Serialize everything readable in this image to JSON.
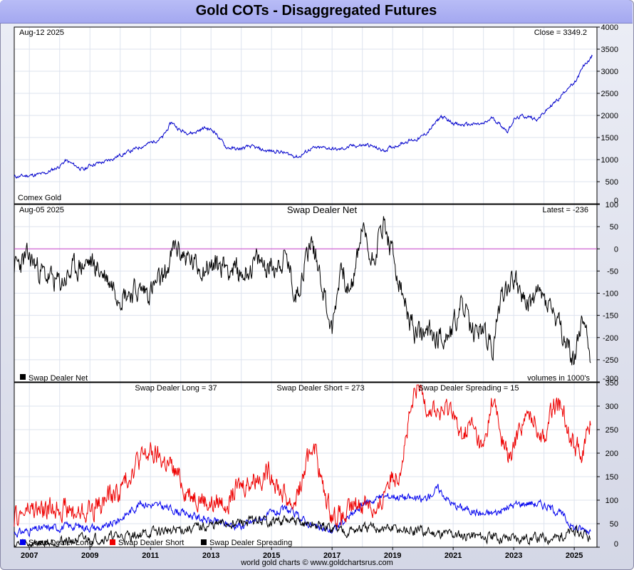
{
  "title": "Gold COTs - Disaggregated Futures",
  "credit": "world gold charts © www.goldchartsrus.com",
  "colors": {
    "price": "#0000cc",
    "net": "#000000",
    "zero": "#cc44cc",
    "long": "#0000ee",
    "short": "#ee0000",
    "spreading": "#000000",
    "grid": "#dde3ee"
  },
  "chart_data": [
    {
      "type": "line",
      "panel": "price",
      "date_label": "Aug-12  2025",
      "latest_label": "Close = 3349.2",
      "source_label": "Comex Gold",
      "ylim": [
        0,
        4000
      ],
      "yticks": [
        0,
        500,
        1000,
        1500,
        2000,
        2500,
        3000,
        3500,
        4000
      ],
      "series": [
        {
          "name": "Comex Gold",
          "x": [
            2006.5,
            2007.0,
            2007.5,
            2008.0,
            2008.2,
            2008.8,
            2009.0,
            2009.5,
            2010.0,
            2010.5,
            2011.0,
            2011.4,
            2011.7,
            2012.0,
            2012.4,
            2012.8,
            2013.1,
            2013.5,
            2013.9,
            2014.3,
            2014.8,
            2015.2,
            2015.9,
            2016.3,
            2016.8,
            2017.2,
            2017.7,
            2018.2,
            2018.7,
            2019.0,
            2019.5,
            2019.9,
            2020.2,
            2020.6,
            2020.8,
            2021.2,
            2021.6,
            2022.0,
            2022.3,
            2022.8,
            2023.0,
            2023.3,
            2023.8,
            2024.2,
            2024.5,
            2024.8,
            2025.0,
            2025.3,
            2025.6
          ],
          "y": [
            610,
            640,
            680,
            850,
            980,
            760,
            880,
            950,
            1100,
            1240,
            1380,
            1500,
            1850,
            1650,
            1600,
            1720,
            1650,
            1280,
            1230,
            1300,
            1200,
            1190,
            1060,
            1250,
            1270,
            1220,
            1310,
            1330,
            1200,
            1290,
            1420,
            1480,
            1650,
            1980,
            1900,
            1780,
            1800,
            1800,
            1950,
            1640,
            1900,
            1990,
            1920,
            2200,
            2380,
            2650,
            2700,
            3100,
            3350
          ]
        }
      ]
    },
    {
      "type": "line",
      "panel": "net",
      "date_label": "Aug-05  2025",
      "title": "Swap Dealer Net",
      "latest_label": "Latest = -236",
      "footer_label": "volumes in 1000's",
      "ylim": [
        -300,
        100
      ],
      "yticks": [
        -300,
        -250,
        -200,
        -150,
        -100,
        -50,
        0,
        50,
        100
      ],
      "series": [
        {
          "name": "Swap Dealer Net",
          "x": [
            2006.5,
            2007.0,
            2007.5,
            2008.0,
            2008.5,
            2009.0,
            2009.5,
            2010.0,
            2010.5,
            2011.0,
            2011.5,
            2011.8,
            2012.2,
            2012.5,
            2013.0,
            2013.5,
            2014.0,
            2014.5,
            2015.0,
            2015.5,
            2015.8,
            2016.3,
            2016.6,
            2017.0,
            2017.3,
            2017.6,
            2018.0,
            2018.3,
            2018.7,
            2019.0,
            2019.3,
            2019.5,
            2019.8,
            2020.2,
            2020.6,
            2021.0,
            2021.3,
            2021.6,
            2022.0,
            2022.3,
            2022.6,
            2023.0,
            2023.4,
            2023.8,
            2024.2,
            2024.6,
            2025.0,
            2025.3,
            2025.55
          ],
          "y": [
            -40,
            -20,
            -60,
            -80,
            -45,
            -30,
            -60,
            -100,
            -95,
            -95,
            -60,
            5,
            -20,
            -40,
            -40,
            -35,
            -60,
            -30,
            -40,
            -20,
            -110,
            20,
            -50,
            -190,
            -30,
            -110,
            50,
            -30,
            60,
            -20,
            -100,
            -150,
            -200,
            -190,
            -200,
            -180,
            -120,
            -190,
            -180,
            -230,
            -100,
            -60,
            -130,
            -100,
            -130,
            -200,
            -250,
            -150,
            -236
          ]
        }
      ]
    },
    {
      "type": "line",
      "panel": "positions",
      "ylim": [
        0,
        350
      ],
      "yticks": [
        0,
        50,
        100,
        150,
        200,
        250,
        300,
        350
      ],
      "x_ticks": [
        "2007",
        "2009",
        "2011",
        "2013",
        "2015",
        "2017",
        "2019",
        "2021",
        "2023",
        "2025"
      ],
      "xlim": [
        2006.5,
        2025.75
      ],
      "series": [
        {
          "name": "Swap Dealer Long",
          "legend_label": "Swap Dealer Long",
          "top_label": "Swap Dealer Long = 37",
          "x": [
            2006.5,
            2007.5,
            2008.5,
            2009.5,
            2010.0,
            2010.7,
            2011.0,
            2011.5,
            2012.0,
            2012.5,
            2013.0,
            2014.0,
            2015.0,
            2015.5,
            2016.0,
            2016.5,
            2017.0,
            2017.5,
            2018.0,
            2018.5,
            2019.0,
            2019.5,
            2020.0,
            2020.5,
            2021.0,
            2021.5,
            2022.0,
            2022.5,
            2023.0,
            2023.5,
            2024.0,
            2024.5,
            2025.0,
            2025.55
          ],
          "y": [
            30,
            40,
            45,
            40,
            60,
            95,
            90,
            85,
            75,
            65,
            55,
            45,
            70,
            80,
            60,
            40,
            35,
            60,
            90,
            105,
            110,
            105,
            100,
            125,
            90,
            80,
            70,
            75,
            90,
            95,
            90,
            75,
            40,
            37
          ]
        },
        {
          "name": "Swap Dealer Short",
          "legend_label": "Swap Dealer Short",
          "top_label": "Swap Dealer Short = 273",
          "x": [
            2006.5,
            2007.0,
            2007.5,
            2008.0,
            2008.5,
            2009.0,
            2009.5,
            2010.0,
            2010.5,
            2011.0,
            2011.5,
            2011.8,
            2012.2,
            2012.6,
            2013.0,
            2013.5,
            2014.0,
            2014.5,
            2015.0,
            2015.3,
            2015.7,
            2016.0,
            2016.4,
            2016.7,
            2017.0,
            2017.4,
            2017.8,
            2018.2,
            2018.5,
            2018.8,
            2019.2,
            2019.5,
            2019.8,
            2020.2,
            2020.6,
            2021.0,
            2021.2,
            2021.6,
            2022.0,
            2022.3,
            2022.6,
            2022.9,
            2023.2,
            2023.6,
            2024.0,
            2024.3,
            2024.6,
            2025.0,
            2025.3,
            2025.55
          ],
          "y": [
            60,
            80,
            75,
            90,
            70,
            80,
            100,
            120,
            180,
            200,
            180,
            160,
            120,
            110,
            90,
            100,
            130,
            150,
            160,
            120,
            90,
            140,
            230,
            120,
            70,
            60,
            90,
            100,
            60,
            140,
            160,
            250,
            340,
            300,
            280,
            300,
            230,
            260,
            200,
            320,
            230,
            180,
            260,
            280,
            230,
            300,
            300,
            220,
            200,
            273
          ]
        },
        {
          "name": "Swap Dealer Spreading",
          "legend_label": "Swap Dealer Spreading",
          "top_label": "Swap Dealer Spreading = 15",
          "x": [
            2006.5,
            2007.5,
            2008.5,
            2009.5,
            2010.5,
            2011.5,
            2012.5,
            2013.5,
            2014.5,
            2015.5,
            2016.5,
            2017.5,
            2018.5,
            2019.5,
            2020.5,
            2021.5,
            2022.5,
            2023.5,
            2024.5,
            2025.0,
            2025.55
          ],
          "y": [
            5,
            10,
            15,
            20,
            25,
            35,
            40,
            50,
            55,
            55,
            45,
            35,
            40,
            35,
            30,
            25,
            20,
            20,
            20,
            35,
            15
          ]
        }
      ]
    }
  ]
}
